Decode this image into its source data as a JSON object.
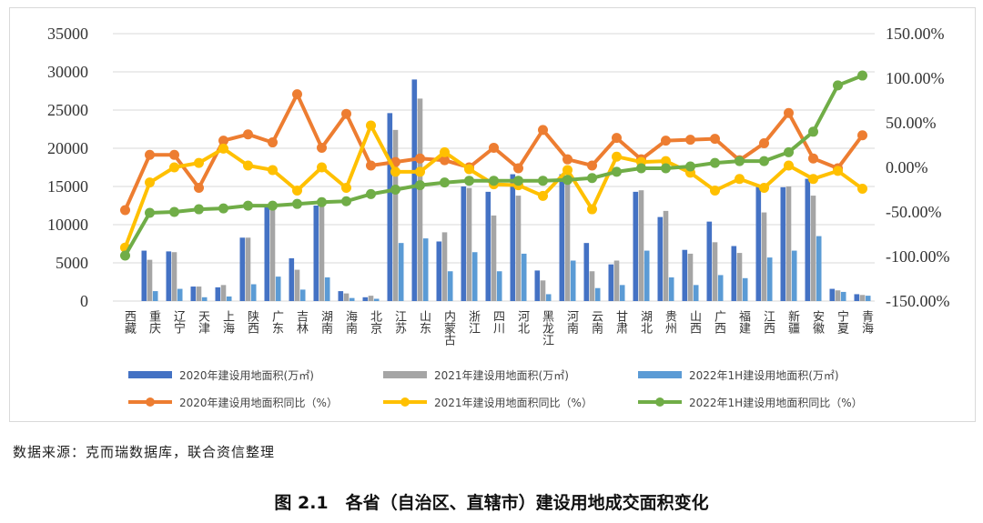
{
  "chart_data": {
    "type": "bar",
    "categories": [
      "西藏",
      "重庆",
      "辽宁",
      "天津",
      "上海",
      "陕西",
      "广东",
      "吉林",
      "湖南",
      "海南",
      "北京",
      "江苏",
      "山东",
      "内蒙古",
      "浙江",
      "四川",
      "河北",
      "黑龙江",
      "河南",
      "云南",
      "甘肃",
      "湖北",
      "贵州",
      "山西",
      "广西",
      "福建",
      "江西",
      "新疆",
      "安徽",
      "宁夏",
      "青海"
    ],
    "series": [
      {
        "name": "2020年建设用地面积(万㎡)",
        "type": "bar",
        "axis": "left",
        "color": "#4472c4",
        "values": [
          0,
          6600,
          6500,
          1900,
          1800,
          8300,
          12500,
          5600,
          12500,
          1300,
          500,
          24600,
          29000,
          7800,
          15000,
          14300,
          16600,
          4000,
          16600,
          7600,
          4800,
          14300,
          11000,
          6700,
          10400,
          7200,
          15100,
          14900,
          16000,
          1600,
          900
        ]
      },
      {
        "name": "2021年建设用地面积(万㎡)",
        "type": "bar",
        "axis": "left",
        "color": "#a5a5a5",
        "values": [
          0,
          5400,
          6400,
          1900,
          2100,
          8300,
          12300,
          4100,
          12400,
          1000,
          700,
          22400,
          26500,
          9000,
          14800,
          11200,
          13800,
          2700,
          15700,
          3900,
          5300,
          14500,
          11800,
          6200,
          7700,
          6300,
          11600,
          15000,
          13800,
          1400,
          800
        ]
      },
      {
        "name": "2022年1H建设用地面积(万㎡)",
        "type": "bar",
        "axis": "left",
        "color": "#5b9bd5",
        "values": [
          0,
          1300,
          1600,
          500,
          600,
          2200,
          3200,
          1500,
          3100,
          400,
          300,
          7600,
          8200,
          3900,
          6400,
          3900,
          6200,
          900,
          5300,
          1700,
          2100,
          6600,
          3100,
          2100,
          3400,
          3000,
          5700,
          6600,
          8500,
          1200,
          700
        ]
      },
      {
        "name": "2020年建设用地面积同比（%）",
        "type": "line",
        "axis": "right",
        "color": "#ed7d31",
        "values": [
          -48,
          14,
          14,
          -23,
          30,
          37,
          28,
          82,
          22,
          60,
          2,
          6,
          10,
          8,
          0,
          22,
          -1,
          42,
          9,
          2,
          33,
          9,
          30,
          31,
          32,
          8,
          27,
          61,
          10,
          -1,
          36
        ]
      },
      {
        "name": "2021年建设用地面积同比（%）",
        "type": "line",
        "axis": "right",
        "color": "#ffc000",
        "values": [
          -90,
          -17,
          0,
          5,
          21,
          2,
          -3,
          -26,
          0,
          -23,
          47,
          -5,
          -5,
          17,
          -2,
          -19,
          -20,
          -32,
          -3,
          -47,
          12,
          6,
          7,
          -6,
          -26,
          -13,
          -23,
          2,
          -13,
          -4,
          -24
        ]
      },
      {
        "name": "2022年1H建设用地面积同比（%）",
        "type": "line",
        "axis": "right",
        "color": "#70ad47",
        "values": [
          -99,
          -51,
          -50,
          -47,
          -46,
          -43,
          -43,
          -41,
          -39,
          -38,
          -30,
          -25,
          -20,
          -17,
          -15,
          -15,
          -15,
          -15,
          -14,
          -12,
          -5,
          -1,
          -1,
          1,
          5,
          7,
          7,
          17,
          40,
          92,
          103
        ]
      }
    ],
    "y_left": {
      "min": 0,
      "max": 35000,
      "ticks": [
        "0",
        "5000",
        "10000",
        "15000",
        "20000",
        "25000",
        "30000",
        "35000"
      ]
    },
    "y_right": {
      "min": -150,
      "max": 150,
      "ticks": [
        "-150.00%",
        "-100.00%",
        "-50.00%",
        "0.00%",
        "50.00%",
        "100.00%",
        "150.00%"
      ]
    },
    "grid": true,
    "legend": "bottom"
  },
  "source_note": "数据来源：克而瑞数据库，联合资信整理",
  "caption": "图 2.1　各省（自治区、直辖市）建设用地成交面积变化"
}
